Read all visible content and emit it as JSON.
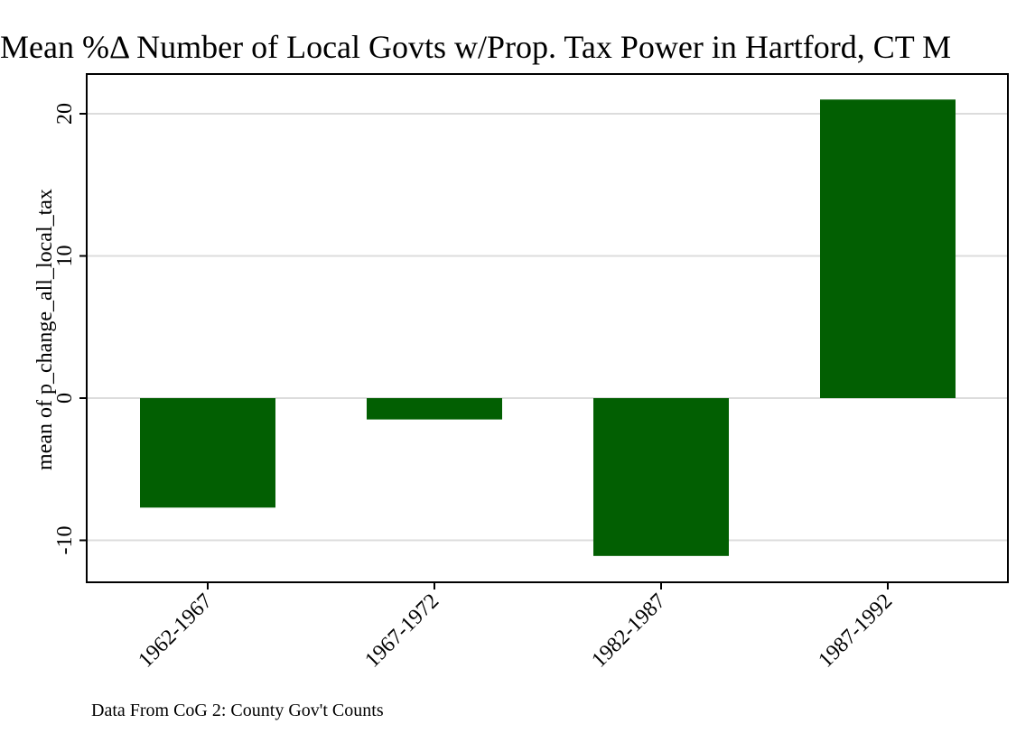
{
  "chart_data": {
    "type": "bar",
    "title": "Mean %Δ Number of Local Govts w/Prop. Tax Power in Hartford, CT M",
    "ylabel": "mean of p_change_all_local_tax",
    "xlabel": "",
    "categories": [
      "1962-1967",
      "1967-1972",
      "1982-1987",
      "1987-1992"
    ],
    "values": [
      -7.7,
      -1.5,
      -11.1,
      21.0
    ],
    "ylim": [
      -13,
      23
    ],
    "yticks": [
      -10,
      0,
      10,
      20
    ],
    "ytick_labels": [
      "-10",
      "0",
      "10",
      "20"
    ],
    "grid": true,
    "legend": "none",
    "note": "Data From CoG 2: County Gov't Counts",
    "bar_color": "#025f02",
    "grid_color": "#dcdcdc"
  }
}
